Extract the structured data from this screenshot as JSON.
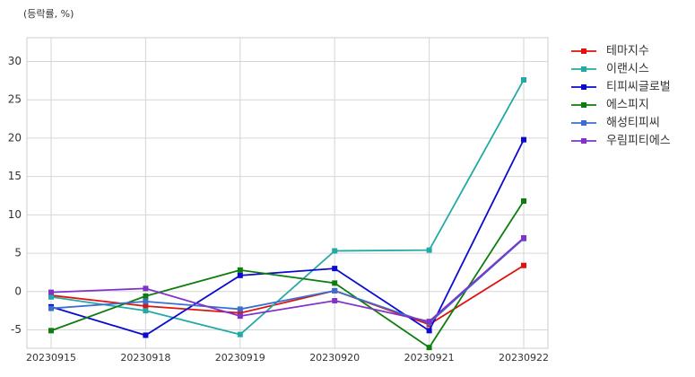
{
  "chart_data": {
    "type": "line",
    "subtitle": "(등락률, %)",
    "categories": [
      "20230915",
      "20230918",
      "20230919",
      "20230920",
      "20230921",
      "20230922"
    ],
    "series": [
      {
        "name": "테마지수",
        "color": "#e0110f",
        "values": [
          -0.5,
          -1.9,
          -2.8,
          0.1,
          -4.3,
          3.4
        ]
      },
      {
        "name": "이랜시스",
        "color": "#22aaa5",
        "values": [
          -0.7,
          -2.5,
          -5.6,
          5.3,
          5.4,
          27.6
        ]
      },
      {
        "name": "티피씨글로벌",
        "color": "#0a0ad0",
        "values": [
          -2.0,
          -5.7,
          2.1,
          3.0,
          -5.1,
          19.8
        ]
      },
      {
        "name": "에스피지",
        "color": "#0e7d0e",
        "values": [
          -5.1,
          -0.6,
          2.8,
          1.1,
          -7.3,
          11.8
        ]
      },
      {
        "name": "해성티피씨",
        "color": "#3a6fd0",
        "values": [
          -2.2,
          -1.3,
          -2.3,
          0.1,
          -4.1,
          6.9
        ]
      },
      {
        "name": "우림피티에스",
        "color": "#8033c8",
        "values": [
          -0.1,
          0.4,
          -3.2,
          -1.2,
          -3.9,
          7.0
        ]
      }
    ],
    "ylim": [
      -7.4,
      33.1
    ],
    "yticks": [
      -5,
      0,
      5,
      10,
      15,
      20,
      25,
      30
    ],
    "grid": true,
    "legend": "outside-right"
  }
}
